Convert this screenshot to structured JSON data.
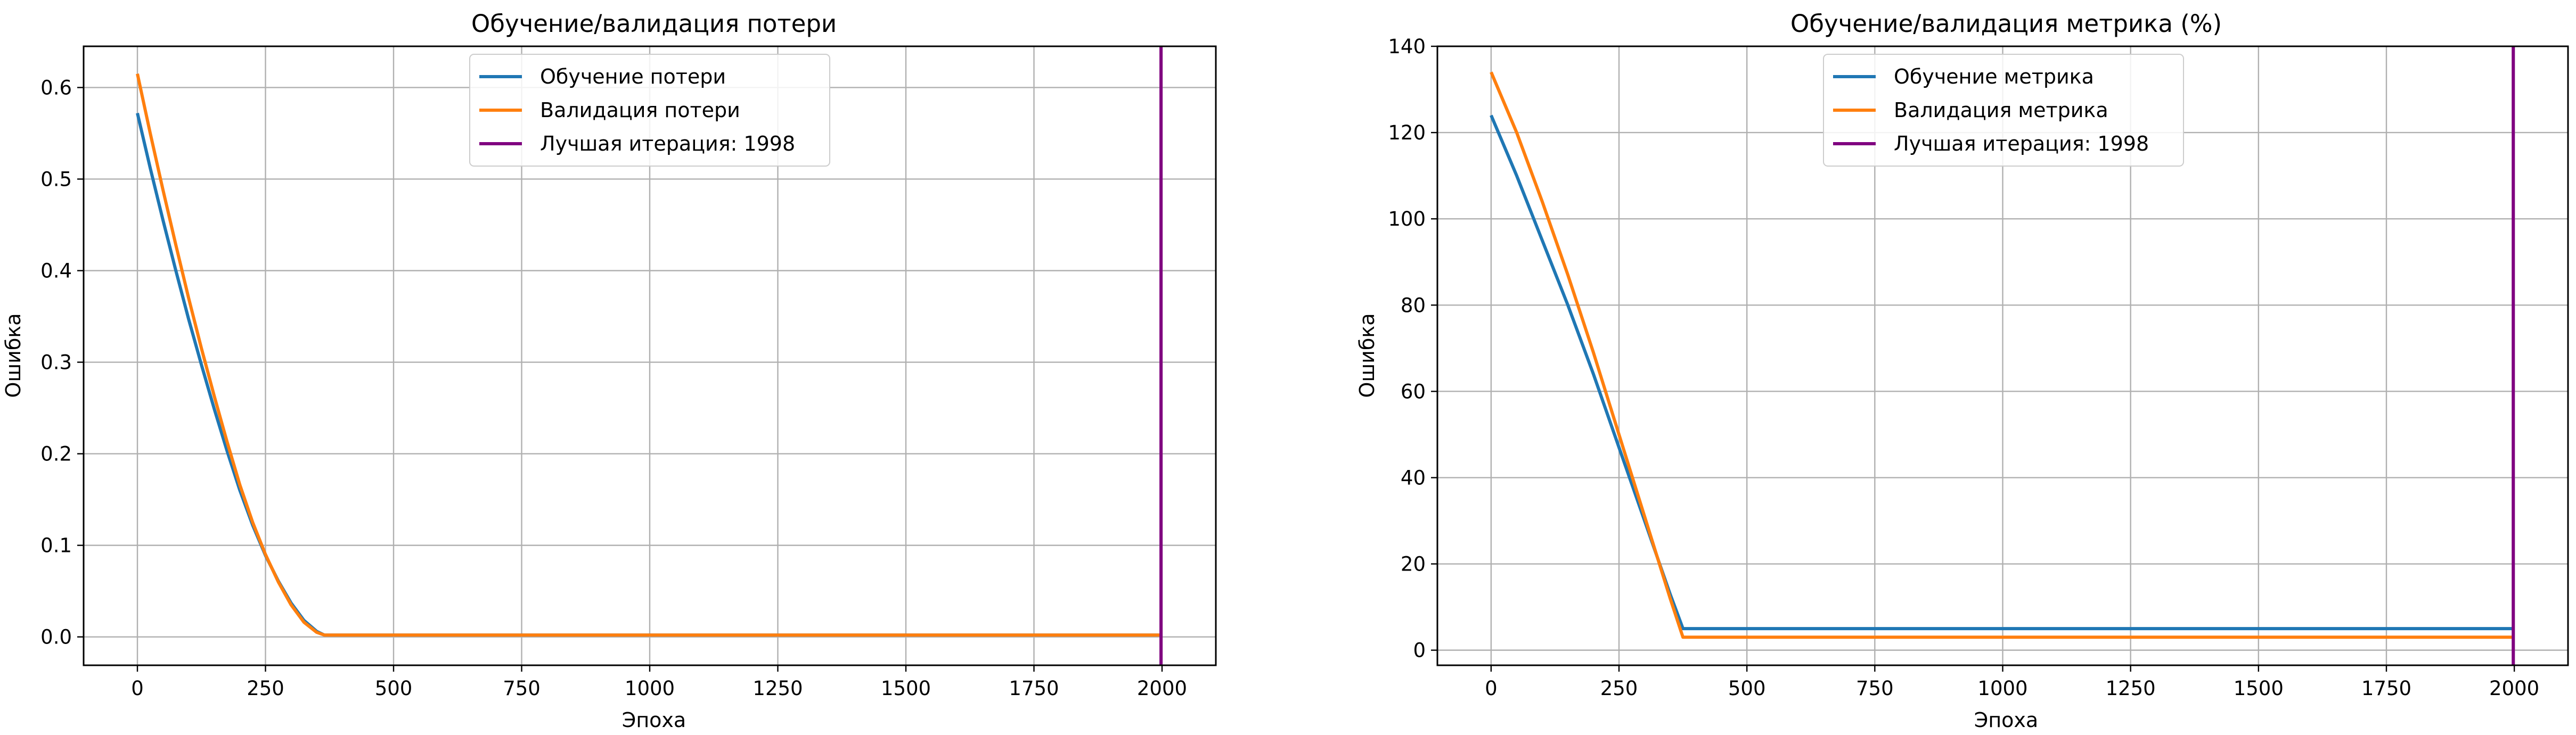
{
  "chart_data": [
    {
      "type": "line",
      "title": "Обучение/валидация потери",
      "xlabel": "Эпоха",
      "ylabel": "Ошибка",
      "xlim": [
        -105,
        2105
      ],
      "ylim": [
        -0.031,
        0.645
      ],
      "xticks": [
        0,
        250,
        500,
        750,
        1000,
        1250,
        1500,
        1750,
        2000
      ],
      "yticks": [
        0.0,
        0.1,
        0.2,
        0.3,
        0.4,
        0.5,
        0.6
      ],
      "ytick_labels": [
        "0.0",
        "0.1",
        "0.2",
        "0.3",
        "0.4",
        "0.5",
        "0.6"
      ],
      "grid": true,
      "legend_position": "upper-center",
      "series": [
        {
          "name": "Обучение потери",
          "color": "#1f77b4",
          "x": [
            0,
            25,
            50,
            75,
            100,
            125,
            150,
            175,
            200,
            225,
            250,
            275,
            300,
            325,
            350,
            365,
            375,
            400,
            500,
            750,
            1000,
            1250,
            1500,
            1750,
            2000
          ],
          "y": [
            0.572,
            0.512,
            0.455,
            0.4,
            0.347,
            0.297,
            0.249,
            0.203,
            0.16,
            0.122,
            0.089,
            0.061,
            0.037,
            0.018,
            0.006,
            0.002,
            0.002,
            0.002,
            0.002,
            0.002,
            0.002,
            0.002,
            0.002,
            0.002,
            0.002
          ]
        },
        {
          "name": "Валидация потери",
          "color": "#ff7f0e",
          "x": [
            0,
            25,
            50,
            75,
            100,
            125,
            150,
            175,
            200,
            225,
            250,
            275,
            300,
            325,
            350,
            365,
            375,
            400,
            500,
            750,
            1000,
            1250,
            1500,
            1750,
            2000
          ],
          "y": [
            0.615,
            0.55,
            0.488,
            0.428,
            0.37,
            0.315,
            0.263,
            0.213,
            0.166,
            0.125,
            0.09,
            0.06,
            0.035,
            0.016,
            0.005,
            0.002,
            0.002,
            0.002,
            0.002,
            0.002,
            0.002,
            0.002,
            0.002,
            0.002,
            0.002
          ]
        }
      ],
      "vline": {
        "name": "Лучшая итерация: 1998",
        "x": 1998,
        "color": "#800080"
      }
    },
    {
      "type": "line",
      "title": "Обучение/валидация метрика (%)",
      "xlabel": "Эпоха",
      "ylabel": "Ошибка",
      "xlim": [
        -105,
        2105
      ],
      "ylim": [
        -3.5,
        140
      ],
      "xticks": [
        0,
        250,
        500,
        750,
        1000,
        1250,
        1500,
        1750,
        2000
      ],
      "yticks": [
        0,
        20,
        40,
        60,
        80,
        100,
        120,
        140
      ],
      "ytick_labels": [
        "0",
        "20",
        "40",
        "60",
        "80",
        "100",
        "120",
        "140"
      ],
      "grid": true,
      "legend_position": "upper-center",
      "series": [
        {
          "name": "Обучение метрика",
          "color": "#1f77b4",
          "x": [
            0,
            50,
            100,
            150,
            200,
            250,
            300,
            350,
            375,
            400,
            500,
            750,
            1000,
            1250,
            1500,
            1750,
            2000
          ],
          "y": [
            124,
            110,
            95,
            80,
            64,
            47,
            30,
            13,
            5,
            5,
            5,
            5,
            5,
            5,
            5,
            5,
            5
          ]
        },
        {
          "name": "Валидация метрика",
          "color": "#ff7f0e",
          "x": [
            0,
            50,
            100,
            150,
            200,
            250,
            300,
            350,
            375,
            400,
            500,
            750,
            1000,
            1250,
            1500,
            1750,
            2000
          ],
          "y": [
            134,
            120,
            104,
            87,
            69,
            50,
            31,
            12,
            3,
            3,
            3,
            3,
            3,
            3,
            3,
            3,
            3
          ]
        }
      ],
      "vline": {
        "name": "Лучшая итерация: 1998",
        "x": 1998,
        "color": "#800080"
      }
    }
  ]
}
